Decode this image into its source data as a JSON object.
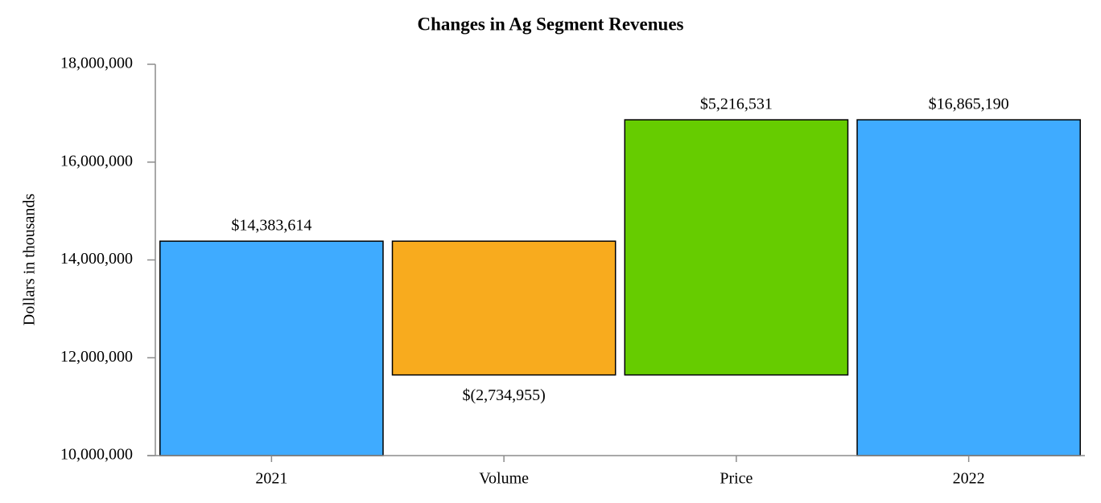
{
  "chart_data": {
    "type": "waterfall",
    "title": "Changes in Ag Segment Revenues",
    "y_label": "Dollars in thousands",
    "categories": [
      "2021",
      "Volume",
      "Price",
      "2022"
    ],
    "values": [
      14383614,
      -2734955,
      5216531,
      16865190
    ],
    "value_labels": [
      "$14,383,614",
      "$(2,734,955)",
      "$5,216,531",
      "$16,865,190"
    ],
    "is_total": [
      true,
      false,
      false,
      true
    ],
    "colors": [
      "#3fabff",
      "#f8ab1e",
      "#66cc00",
      "#3fabff"
    ],
    "ylim": [
      10000000,
      18000000
    ],
    "yticks": [
      {
        "value": 10000000,
        "label": "10,000,000"
      },
      {
        "value": 12000000,
        "label": "12,000,000"
      },
      {
        "value": 14000000,
        "label": "14,000,000"
      },
      {
        "value": 16000000,
        "label": "16,000,000"
      },
      {
        "value": 18000000,
        "label": "18,000,000"
      }
    ],
    "grid": false
  }
}
